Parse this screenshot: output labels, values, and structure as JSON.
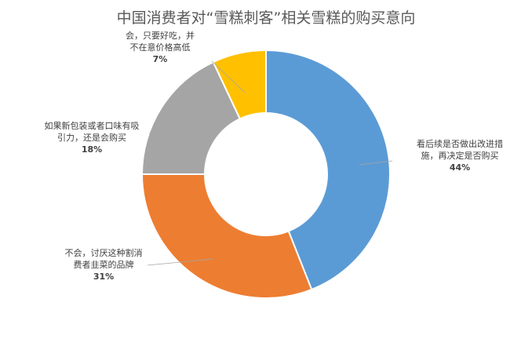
{
  "chart_data": {
    "type": "pie",
    "title": "中国消费者对“雪糕刺客”相关雪糕的购买意向",
    "donut": true,
    "start_angle_deg": 0,
    "direction": "clockwise",
    "slices": [
      {
        "label_lines": [
          "看后续是否做出改进措",
          "施，再决定是否购买"
        ],
        "pct_label": "44%",
        "value": 44,
        "color": "#5B9BD5"
      },
      {
        "label_lines": [
          "不会，讨厌这种割消",
          "费者韭菜的品牌"
        ],
        "pct_label": "31%",
        "value": 31,
        "color": "#ED7D31"
      },
      {
        "label_lines": [
          "如果新包装或者口味有吸",
          "引力，还是会购买"
        ],
        "pct_label": "18%",
        "value": 18,
        "color": "#A5A5A5"
      },
      {
        "label_lines": [
          "会，只要好吃，并",
          "不在意价格高低"
        ],
        "pct_label": "7%",
        "value": 7,
        "color": "#FFC000"
      }
    ]
  }
}
